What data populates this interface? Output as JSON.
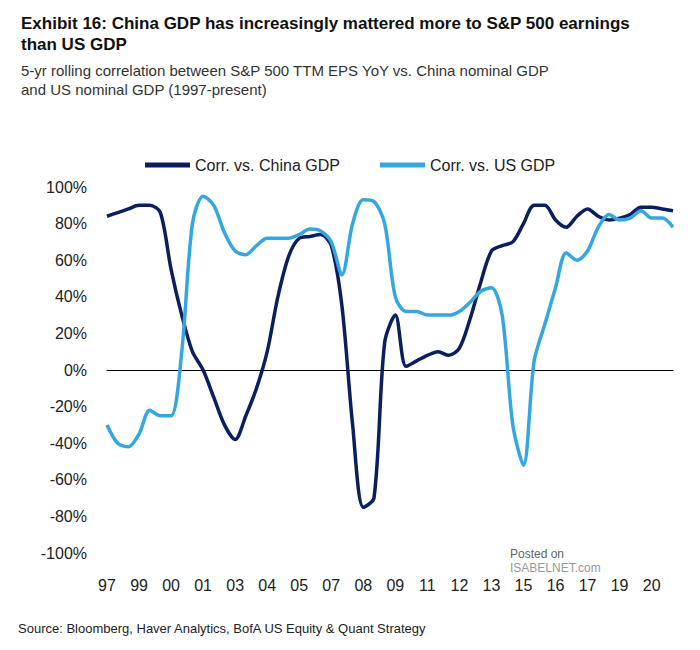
{
  "chart_data": {
    "type": "line",
    "title": "Exhibit 16: China GDP has increasingly mattered more to S&P 500 earnings than US GDP",
    "subtitle": "5-yr rolling correlation between S&P 500 TTM EPS YoY vs. China nominal GDP and US nominal GDP (1997-present)",
    "source": "Source: Bloomberg, Haver Analytics, BofA US Equity & Quant Strategy",
    "annotations": [
      "Posted on",
      "ISABELNET.com"
    ],
    "categories": [
      "97",
      null,
      null,
      "99",
      null,
      null,
      "00",
      null,
      null,
      "01",
      null,
      null,
      "03",
      null,
      null,
      "04",
      null,
      null,
      "05",
      null,
      null,
      "07",
      null,
      null,
      "08",
      null,
      null,
      "09",
      null,
      null,
      "11",
      null,
      null,
      "12",
      null,
      null,
      "13",
      null,
      null,
      "15",
      null,
      null,
      "16",
      null,
      null,
      "17",
      null,
      null,
      "19",
      null,
      null,
      "20",
      null,
      null
    ],
    "series": [
      {
        "name": "Corr. vs. China GDP",
        "color": "#0b1f5e",
        "values": [
          84,
          86,
          88,
          90,
          90,
          86,
          55,
          30,
          10,
          0,
          -15,
          -30,
          -38,
          -25,
          -10,
          10,
          40,
          62,
          72,
          73,
          74,
          68,
          35,
          -30,
          -75,
          -70,
          15,
          30,
          2,
          5,
          8,
          10,
          8,
          12,
          28,
          48,
          65,
          68,
          70,
          80,
          90,
          90,
          82,
          78,
          84,
          88,
          84,
          82,
          83,
          85,
          89,
          89,
          88,
          87
        ]
      },
      {
        "name": "Corr. vs. US GDP",
        "color": "#35a7e0",
        "values": [
          -30,
          -40,
          -42,
          -35,
          -22,
          -25,
          -25,
          10,
          80,
          95,
          90,
          75,
          65,
          63,
          68,
          72,
          72,
          72,
          74,
          77,
          76,
          70,
          52,
          80,
          93,
          92,
          80,
          40,
          32,
          32,
          30,
          30,
          30,
          32,
          37,
          43,
          45,
          30,
          -30,
          -52,
          5,
          25,
          45,
          64,
          60,
          65,
          78,
          85,
          82,
          83,
          87,
          83,
          83,
          78
        ]
      }
    ],
    "ylim": [
      -100,
      100
    ],
    "yticks": [
      {
        "value": -100,
        "label": "-100%"
      },
      {
        "value": -80,
        "label": "-80%"
      },
      {
        "value": -60,
        "label": "-60%"
      },
      {
        "value": -40,
        "label": "-40%"
      },
      {
        "value": -20,
        "label": "-20%"
      },
      {
        "value": 0,
        "label": "0%"
      },
      {
        "value": 20,
        "label": "20%"
      },
      {
        "value": 40,
        "label": "40%"
      },
      {
        "value": 60,
        "label": "60%"
      },
      {
        "value": 80,
        "label": "80%"
      },
      {
        "value": 100,
        "label": "100%"
      }
    ],
    "grid": false,
    "legend": "upper left",
    "marker": "none",
    "line_style": "solid"
  }
}
